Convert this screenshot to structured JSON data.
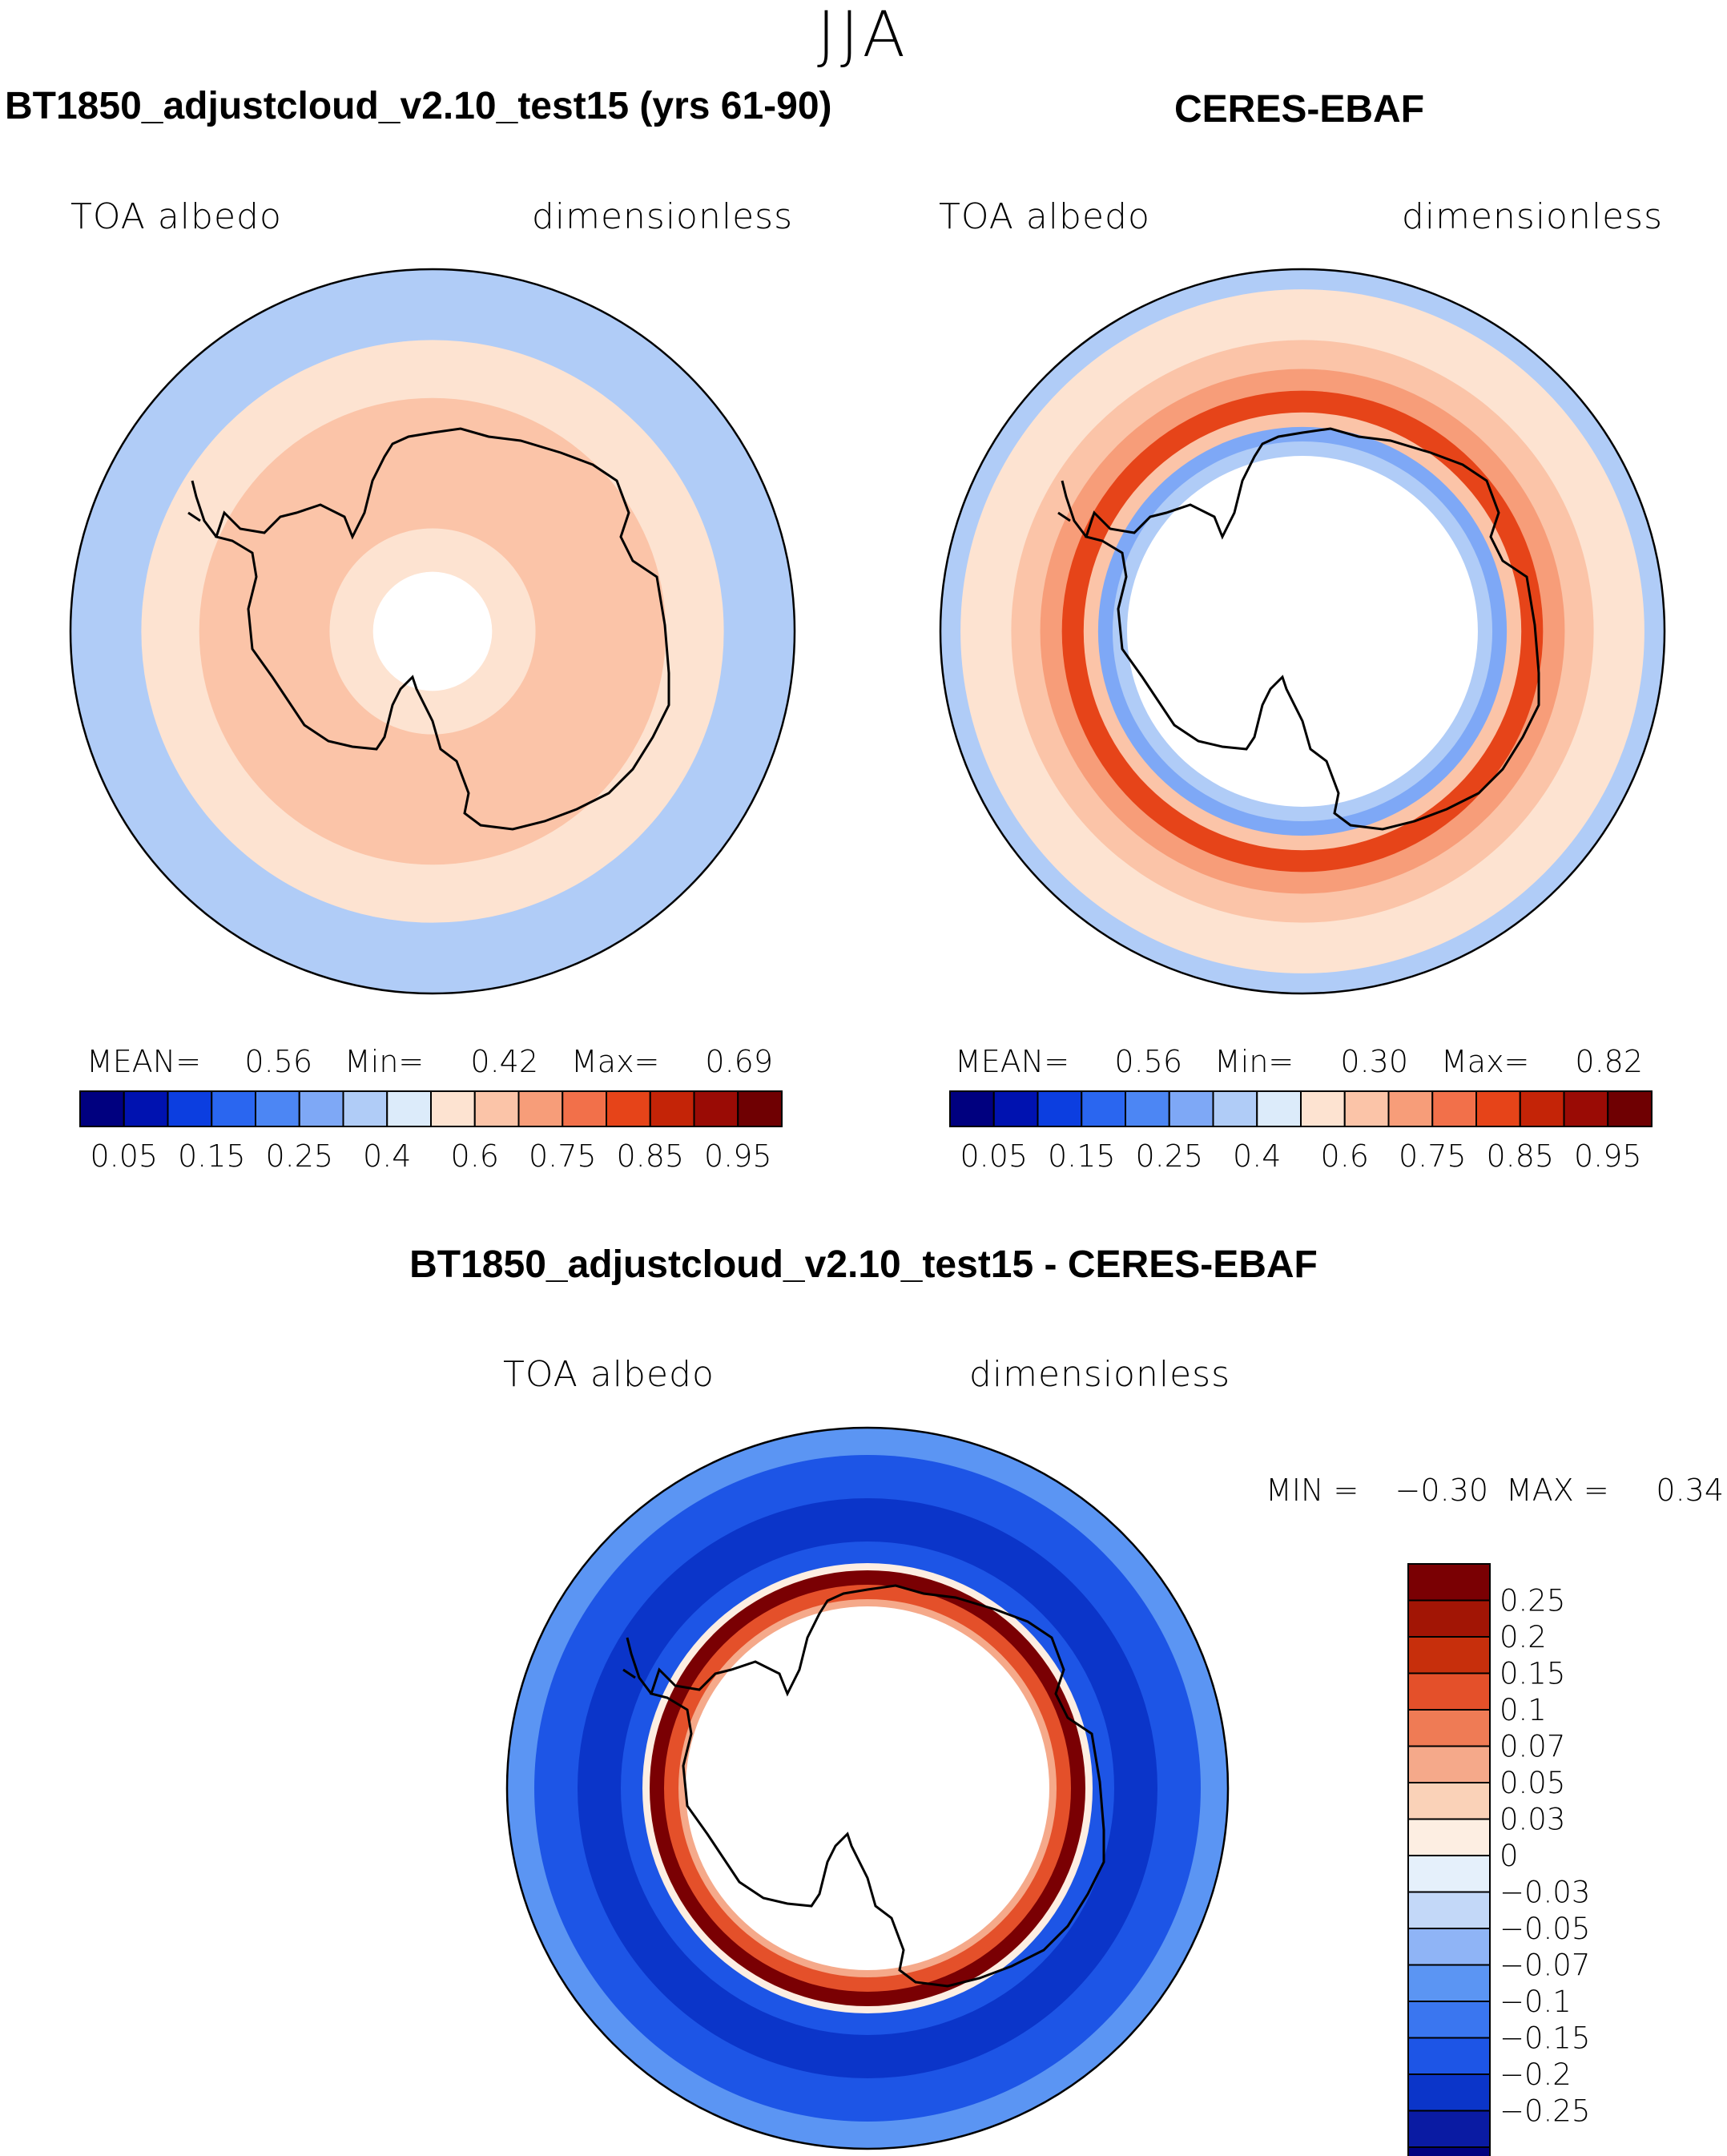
{
  "season": "JJA",
  "diff_title": "BT1850_adjustcloud_v2.10_test15 - CERES-EBAF",
  "colors": {
    "albedo_levels": [
      "#00007f",
      "#0012b0",
      "#0c3ee0",
      "#2a66f0",
      "#4c86f4",
      "#7ea8f6",
      "#b0ccf7",
      "#dcebfa",
      "#fde3d1",
      "#fbc4a8",
      "#f79d79",
      "#f2704a",
      "#e64419",
      "#c42407",
      "#9a0b05",
      "#6f0002"
    ],
    "diff_levels": [
      "#00007f",
      "#0a1ba3",
      "#0b35c9",
      "#1d55e6",
      "#3a76f0",
      "#5b95f3",
      "#8fb4f6",
      "#c3d8f8",
      "#e5f0fb",
      "#fdeee2",
      "#fad2b8",
      "#f5a98a",
      "#ef7b55",
      "#e4502a",
      "#c72f0c",
      "#a21505",
      "#7a0003"
    ]
  },
  "panels": [
    {
      "title": "BT1850_adjustcloud_v2.10_test15 (yrs 61-90)",
      "var_label": "TOA albedo",
      "units_label": "dimensionless",
      "stats": {
        "mean_label": "MEAN=",
        "mean": "0.56",
        "min_label": "Min=",
        "min": "0.42",
        "max_label": "Max=",
        "max": "0.69"
      }
    },
    {
      "title": "CERES-EBAF",
      "var_label": "TOA albedo",
      "units_label": "dimensionless",
      "stats": {
        "mean_label": "MEAN=",
        "mean": "0.56",
        "min_label": "Min=",
        "min": "0.30",
        "max_label": "Max=",
        "max": "0.82"
      }
    },
    {
      "title": "BT1850_adjustcloud_v2.10_test15 - CERES-EBAF",
      "var_label": "TOA albedo",
      "units_label": "dimensionless",
      "stats": {
        "min_label": "MIN =",
        "min": "−0.30",
        "max_label": "MAX =",
        "max": "0.34"
      }
    }
  ],
  "chart_data": [
    {
      "type": "heatmap",
      "projection": "south-polar-stereographic",
      "title": "BT1850_adjustcloud_v2.10_test15 (yrs 61-90)",
      "variable": "TOA albedo",
      "units": "dimensionless",
      "mean": 0.56,
      "min": 0.42,
      "max": 0.69,
      "colorbar_labels": [
        "0.05",
        "0.15",
        "0.25",
        "0.4",
        "0.6",
        "0.75",
        "0.85",
        "0.95"
      ],
      "legend_position": "bottom",
      "zones": [
        {
          "lat_from": -40,
          "lat_to": -50,
          "level": 6
        },
        {
          "lat_from": -50,
          "lat_to": -58,
          "level": 8
        },
        {
          "lat_from": -58,
          "lat_to": -76,
          "level": 9
        },
        {
          "lat_from": -76,
          "lat_to": -82,
          "level": 8
        },
        {
          "lat_from": -82,
          "lat_to": -90,
          "level": -1
        }
      ]
    },
    {
      "type": "heatmap",
      "projection": "south-polar-stereographic",
      "title": "CERES-EBAF",
      "variable": "TOA albedo",
      "units": "dimensionless",
      "mean": 0.56,
      "min": 0.3,
      "max": 0.82,
      "colorbar_labels": [
        "0.05",
        "0.15",
        "0.25",
        "0.4",
        "0.6",
        "0.75",
        "0.85",
        "0.95"
      ],
      "legend_position": "bottom",
      "zones": [
        {
          "lat_from": -40,
          "lat_to": -43,
          "level": 6
        },
        {
          "lat_from": -43,
          "lat_to": -50,
          "level": 8
        },
        {
          "lat_from": -50,
          "lat_to": -54,
          "level": 9
        },
        {
          "lat_from": -54,
          "lat_to": -57,
          "level": 10
        },
        {
          "lat_from": -57,
          "lat_to": -60,
          "level": 12
        },
        {
          "lat_from": -60,
          "lat_to": -62,
          "level": 9
        },
        {
          "lat_from": -62,
          "lat_to": -64,
          "level": 5
        },
        {
          "lat_from": -64,
          "lat_to": -66,
          "level": 6
        },
        {
          "lat_from": -66,
          "lat_to": -90,
          "level": -1
        }
      ]
    },
    {
      "type": "heatmap",
      "projection": "south-polar-stereographic",
      "title": "BT1850_adjustcloud_v2.10_test15 - CERES-EBAF",
      "variable": "TOA albedo",
      "units": "dimensionless",
      "min": -0.3,
      "max": 0.34,
      "colorbar_labels": [
        "0.25",
        "0.2",
        "0.15",
        "0.1",
        "0.07",
        "0.05",
        "0.03",
        "0",
        "−0.03",
        "−0.05",
        "−0.07",
        "−0.1",
        "−0.15",
        "−0.2",
        "−0.25"
      ],
      "legend_position": "right",
      "zones": [
        {
          "lat_from": -40,
          "lat_to": -44,
          "level": 5
        },
        {
          "lat_from": -44,
          "lat_to": -50,
          "level": 3
        },
        {
          "lat_from": -50,
          "lat_to": -56,
          "level": 2
        },
        {
          "lat_from": -56,
          "lat_to": -59,
          "level": 3
        },
        {
          "lat_from": -59,
          "lat_to": -60,
          "level": 9
        },
        {
          "lat_from": -60,
          "lat_to": -62,
          "level": 16
        },
        {
          "lat_from": -62,
          "lat_to": -64,
          "level": 13
        },
        {
          "lat_from": -64,
          "lat_to": -65,
          "level": 11
        },
        {
          "lat_from": -65,
          "lat_to": -90,
          "level": -1
        }
      ]
    }
  ]
}
